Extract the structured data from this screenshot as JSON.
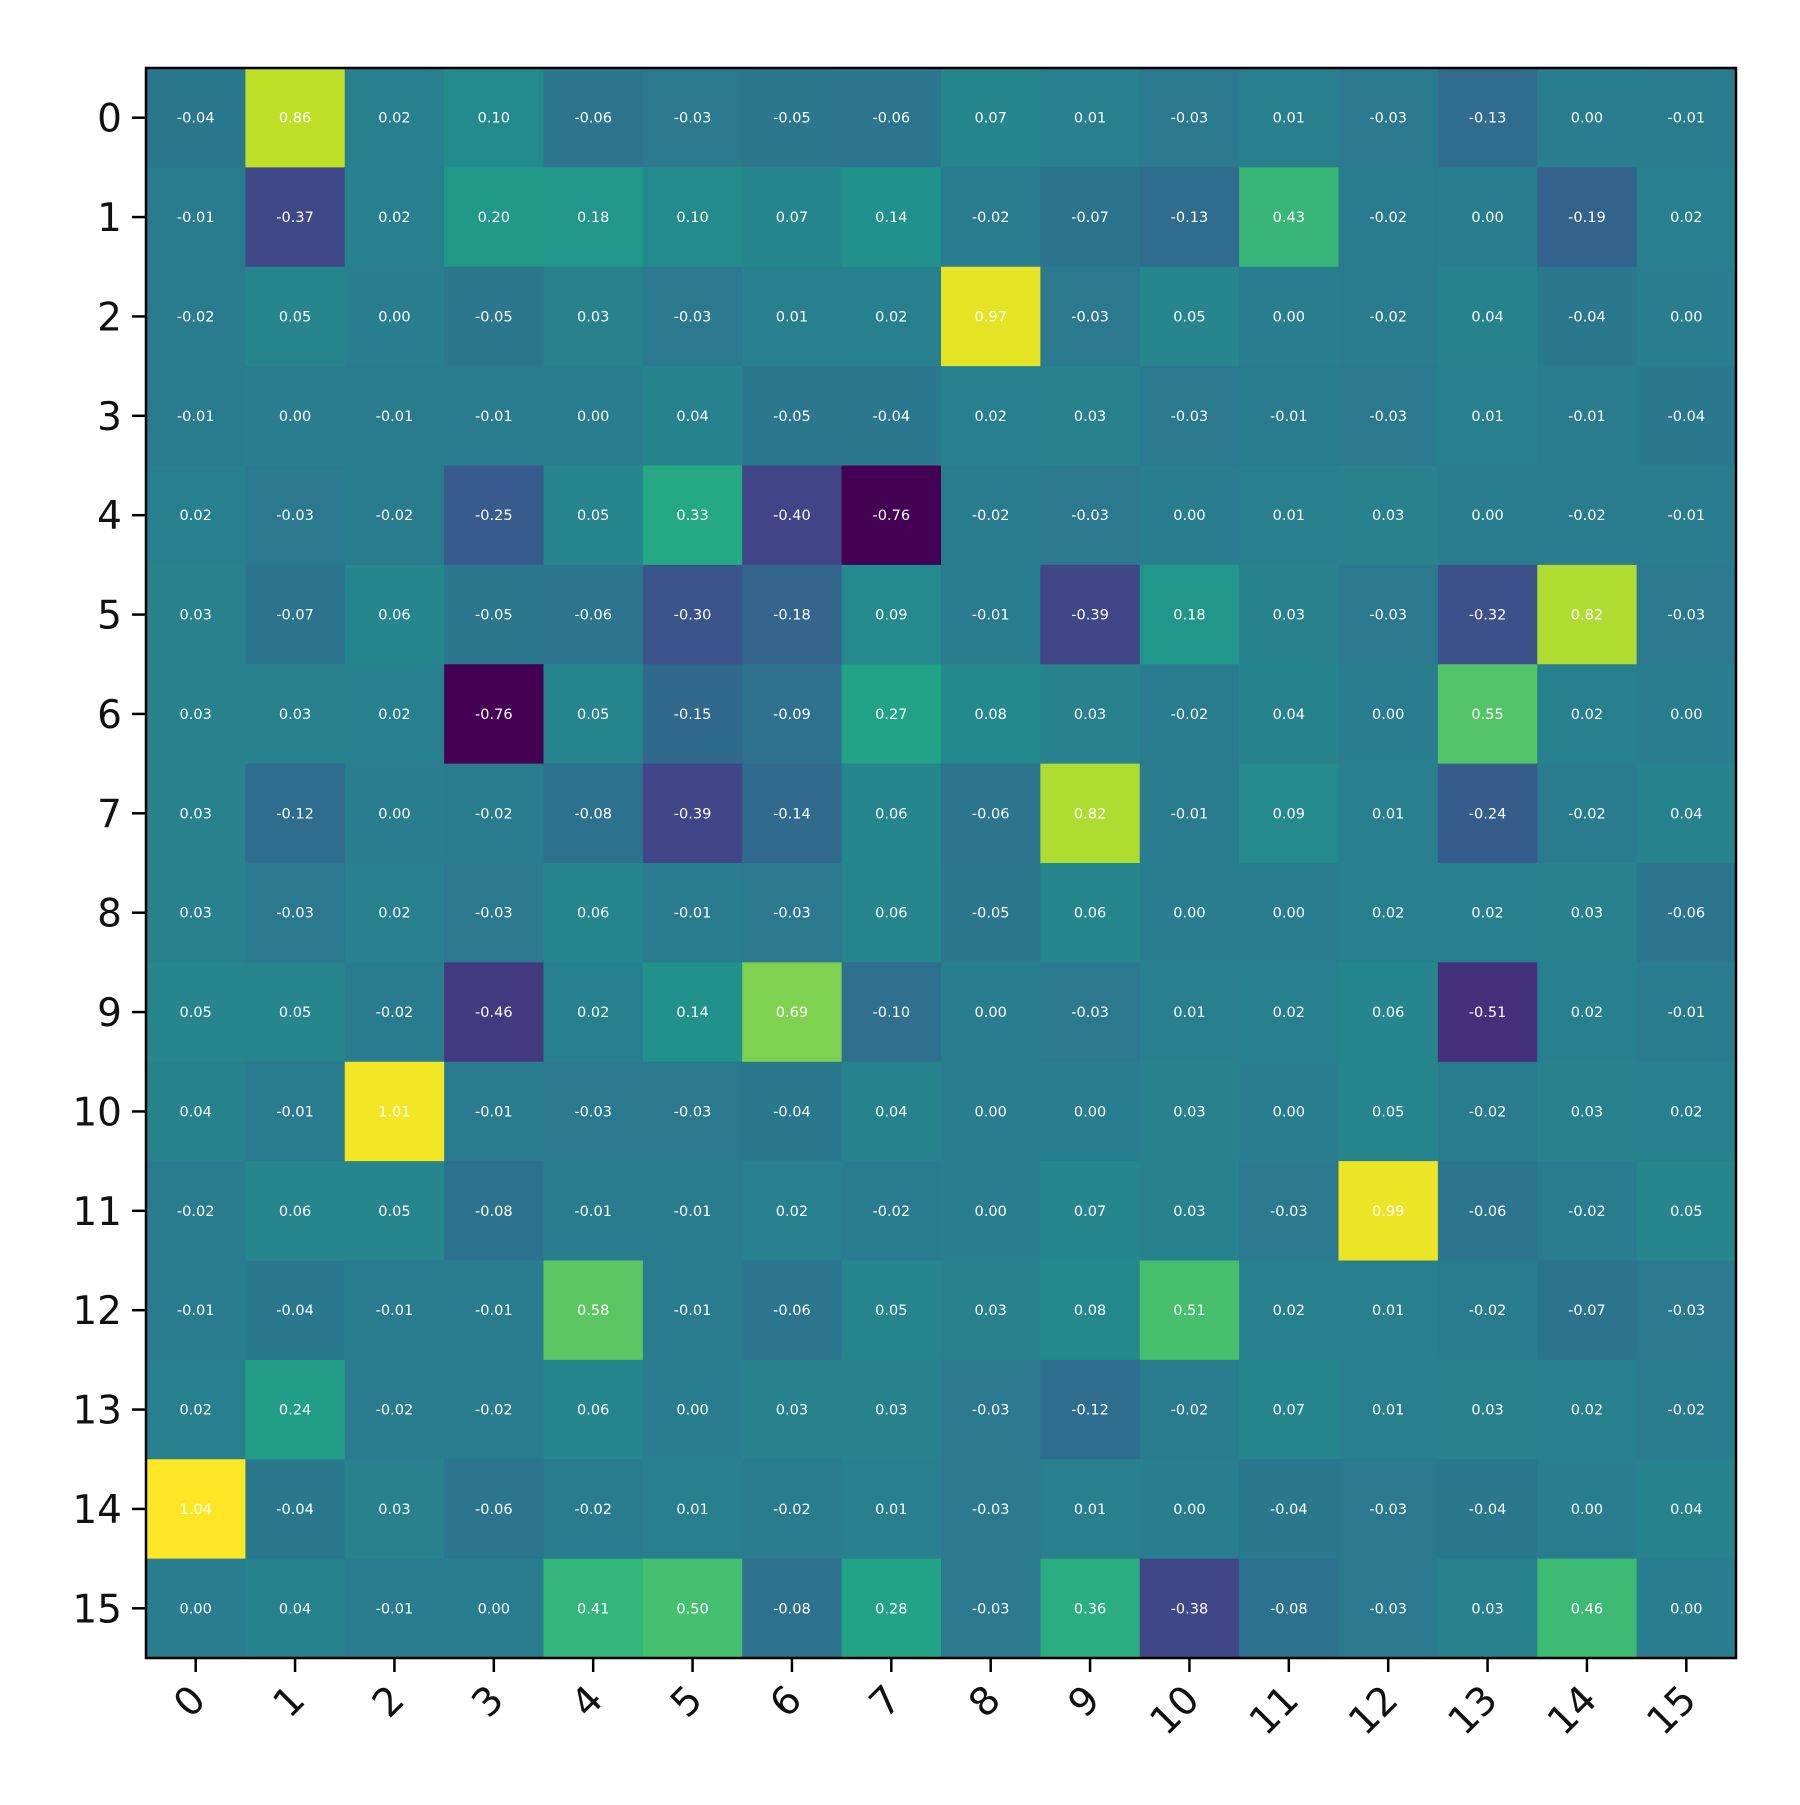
{
  "chart_data": {
    "type": "heatmap",
    "title": "",
    "xlabel": "",
    "ylabel": "",
    "colormap": "viridis",
    "value_range": [
      -0.76,
      1.04
    ],
    "value_format": "2 decimals",
    "x_tick_labels": [
      "0",
      "1",
      "2",
      "3",
      "4",
      "5",
      "6",
      "7",
      "8",
      "9",
      "10",
      "11",
      "12",
      "13",
      "14",
      "15"
    ],
    "y_tick_labels": [
      "0",
      "1",
      "2",
      "3",
      "4",
      "5",
      "6",
      "7",
      "8",
      "9",
      "10",
      "11",
      "12",
      "13",
      "14",
      "15"
    ],
    "rows": [
      [
        -0.04,
        0.86,
        0.02,
        0.1,
        -0.06,
        -0.03,
        -0.05,
        -0.06,
        0.07,
        0.01,
        -0.03,
        0.01,
        -0.03,
        -0.13,
        0.0,
        -0.01
      ],
      [
        -0.01,
        -0.37,
        0.02,
        0.2,
        0.18,
        0.1,
        0.07,
        0.14,
        -0.02,
        -0.07,
        -0.13,
        0.43,
        -0.02,
        -0.0,
        -0.19,
        0.02
      ],
      [
        -0.02,
        0.05,
        0.0,
        -0.05,
        0.03,
        -0.03,
        0.01,
        0.02,
        0.97,
        -0.03,
        0.05,
        -0.0,
        -0.02,
        0.04,
        -0.04,
        0.0
      ],
      [
        -0.01,
        0.0,
        -0.01,
        -0.01,
        -0.0,
        0.04,
        -0.05,
        -0.04,
        0.02,
        0.03,
        -0.03,
        -0.01,
        -0.03,
        0.01,
        -0.01,
        -0.04
      ],
      [
        0.02,
        -0.03,
        -0.02,
        -0.25,
        0.05,
        0.33,
        -0.4,
        -0.76,
        -0.02,
        -0.03,
        -0.0,
        0.01,
        0.03,
        -0.0,
        -0.02,
        -0.01
      ],
      [
        0.03,
        -0.07,
        0.06,
        -0.05,
        -0.06,
        -0.3,
        -0.18,
        0.09,
        -0.01,
        -0.39,
        0.18,
        0.03,
        -0.03,
        -0.32,
        0.82,
        -0.03
      ],
      [
        0.03,
        0.03,
        0.02,
        -0.76,
        0.05,
        -0.15,
        -0.09,
        0.27,
        0.08,
        0.03,
        -0.02,
        0.04,
        -0.0,
        0.55,
        0.02,
        -0.0
      ],
      [
        0.03,
        -0.12,
        -0.0,
        -0.02,
        -0.08,
        -0.39,
        -0.14,
        0.06,
        -0.06,
        0.82,
        -0.01,
        0.09,
        0.01,
        -0.24,
        -0.02,
        0.04
      ],
      [
        0.03,
        -0.03,
        0.02,
        -0.03,
        0.06,
        -0.01,
        -0.03,
        0.06,
        -0.05,
        0.06,
        -0.0,
        0.0,
        0.02,
        0.02,
        0.03,
        -0.06
      ],
      [
        0.05,
        0.05,
        -0.02,
        -0.46,
        0.02,
        0.14,
        0.69,
        -0.1,
        -0.0,
        -0.03,
        0.01,
        0.02,
        0.06,
        -0.51,
        0.02,
        -0.01
      ],
      [
        0.04,
        -0.01,
        1.01,
        -0.01,
        -0.03,
        -0.03,
        -0.04,
        0.04,
        0.0,
        -0.0,
        0.03,
        0.0,
        0.05,
        -0.02,
        0.03,
        0.02
      ],
      [
        -0.02,
        0.06,
        0.05,
        -0.08,
        -0.01,
        -0.01,
        0.02,
        -0.02,
        0.0,
        0.07,
        0.03,
        -0.03,
        0.99,
        -0.06,
        -0.02,
        0.05
      ],
      [
        -0.01,
        -0.04,
        -0.01,
        -0.01,
        0.58,
        -0.01,
        -0.06,
        0.05,
        0.03,
        0.08,
        0.51,
        0.02,
        0.01,
        -0.02,
        -0.07,
        -0.03
      ],
      [
        0.02,
        0.24,
        -0.02,
        -0.02,
        0.06,
        0.0,
        0.03,
        0.03,
        -0.03,
        -0.12,
        -0.02,
        0.07,
        0.01,
        0.03,
        0.02,
        -0.02
      ],
      [
        1.04,
        -0.04,
        0.03,
        -0.06,
        -0.02,
        0.01,
        -0.02,
        0.01,
        -0.03,
        0.01,
        -0.0,
        -0.04,
        -0.03,
        -0.04,
        0.0,
        0.04
      ],
      [
        -0.0,
        0.04,
        -0.01,
        0.0,
        0.41,
        0.5,
        -0.08,
        0.28,
        -0.03,
        0.36,
        -0.38,
        -0.08,
        -0.03,
        0.03,
        0.46,
        -0.0
      ]
    ]
  }
}
